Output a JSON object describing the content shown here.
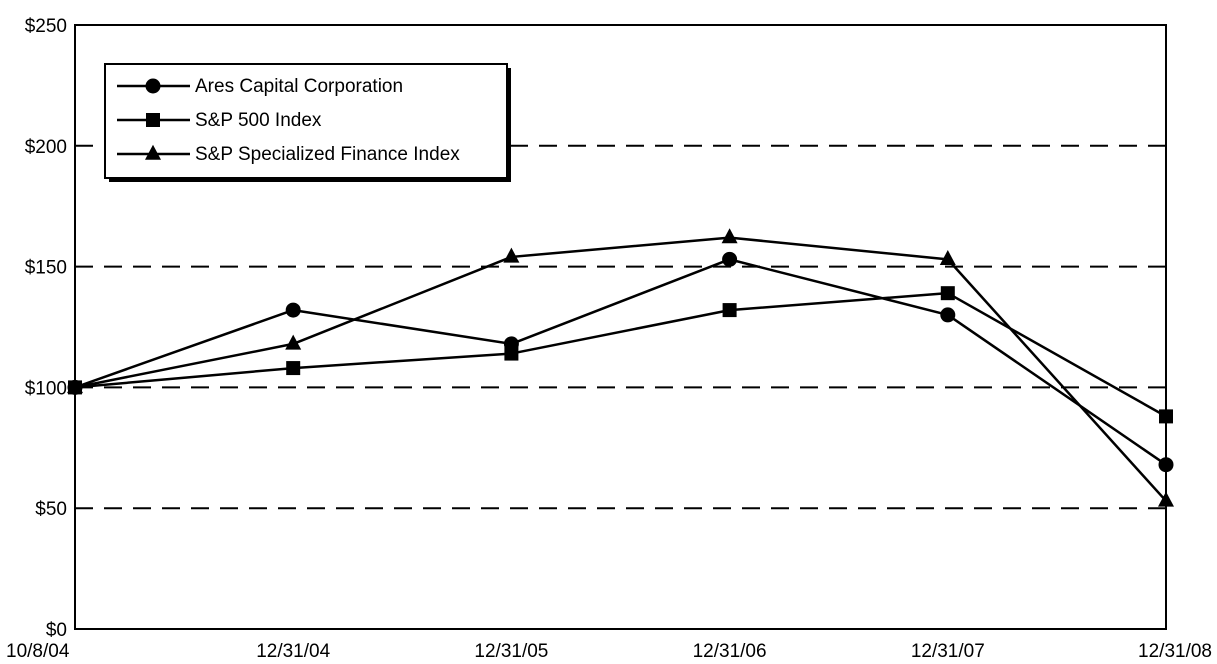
{
  "chart_data": {
    "type": "line",
    "title": "",
    "xlabel": "",
    "ylabel": "",
    "categories": [
      "10/8/04",
      "12/31/04",
      "12/31/05",
      "12/31/06",
      "12/31/07",
      "12/31/08"
    ],
    "y_ticks": [
      "$0",
      "$50",
      "$100",
      "$150",
      "$200",
      "$250"
    ],
    "y_tick_values": [
      0,
      50,
      100,
      150,
      200,
      250
    ],
    "ylim": [
      0,
      250
    ],
    "grid": "horizontal dashed",
    "legend_position": "top-left",
    "series": [
      {
        "name": "Ares Capital Corporation",
        "marker": "circle",
        "values": [
          100,
          132,
          118,
          153,
          130,
          68
        ]
      },
      {
        "name": "S&P 500 Index",
        "marker": "square",
        "values": [
          100,
          108,
          114,
          132,
          139,
          88
        ]
      },
      {
        "name": "S&P Specialized Finance Index",
        "marker": "triangle",
        "values": [
          100,
          118,
          154,
          162,
          153,
          53
        ]
      }
    ],
    "colors": {
      "line": "#000000",
      "grid": "#000000",
      "background": "#ffffff"
    }
  }
}
